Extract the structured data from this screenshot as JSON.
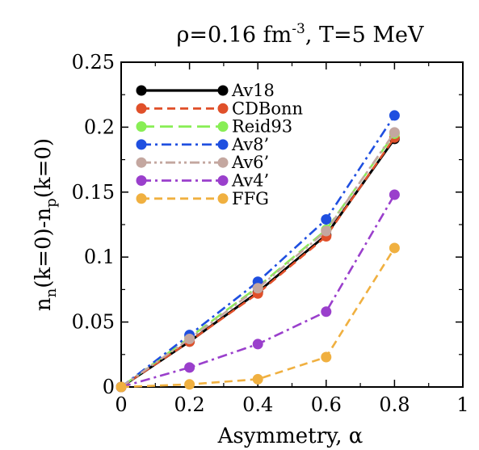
{
  "chart_data": {
    "type": "line",
    "title": "ρ=0.16 fm⁻³, T=5 MeV",
    "xlabel": "Asymmetry, α",
    "ylabel": "nn(k=0)-np(k=0)",
    "xlim": [
      0,
      1
    ],
    "ylim": [
      0,
      0.25
    ],
    "x_ticks": [
      "0",
      "0.2",
      "0.4",
      "0.6",
      "0.8",
      "1"
    ],
    "y_ticks": [
      "0",
      "0.05",
      "0.1",
      "0.15",
      "0.2",
      "0.25"
    ],
    "grid": false,
    "legend_position": "top-left",
    "x": [
      0,
      0.2,
      0.4,
      0.6,
      0.8
    ],
    "series": [
      {
        "name": "Av18",
        "color": "#000000",
        "dash": "solid",
        "values": [
          0,
          0.035,
          0.073,
          0.117,
          0.191
        ]
      },
      {
        "name": "CDBonn",
        "color": "#e0502a",
        "dash": "dashed",
        "values": [
          0,
          0.035,
          0.072,
          0.116,
          0.192
        ]
      },
      {
        "name": "Reid93",
        "color": "#88ee55",
        "dash": "long-dashed",
        "values": [
          0,
          0.038,
          0.077,
          0.121,
          0.195
        ]
      },
      {
        "name": "Av8’",
        "color": "#1f4fe0",
        "dash": "dash-dot",
        "values": [
          0,
          0.04,
          0.081,
          0.129,
          0.209
        ]
      },
      {
        "name": "Av6’",
        "color": "#c4a7a0",
        "dash": "dash-dot-dot",
        "values": [
          0,
          0.037,
          0.076,
          0.12,
          0.196
        ]
      },
      {
        "name": "Av4’",
        "color": "#9a3fcc",
        "dash": "dash-dot",
        "values": [
          0,
          0.015,
          0.033,
          0.058,
          0.148
        ]
      },
      {
        "name": "FFG",
        "color": "#f0b040",
        "dash": "dashed",
        "values": [
          0,
          0.002,
          0.006,
          0.023,
          0.107
        ]
      }
    ]
  }
}
